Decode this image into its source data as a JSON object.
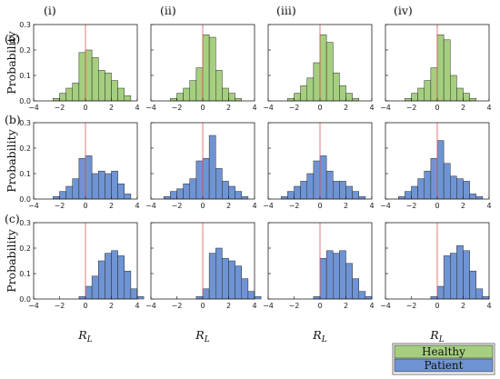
{
  "colors": {
    "healthy": "#a5cf7f",
    "patient": "#6f94d4",
    "edge": "#2b2b2b",
    "zero_line": "#e05a5a"
  },
  "column_labels": [
    "(i)",
    "(ii)",
    "(iii)",
    "(iv)"
  ],
  "row_labels": [
    "(a)",
    "(b)",
    "(c)"
  ],
  "ylabel": "Probability",
  "xlabel": "R",
  "xlabel_sub": "L",
  "x_ticks": [
    "−4",
    "−2",
    "0",
    "2",
    "4"
  ],
  "y_ticks": [
    "0.0",
    "0.1",
    "0.2",
    "0.3"
  ],
  "legend": [
    {
      "label": "Healthy",
      "color": "#a5cf7f"
    },
    {
      "label": "Patient",
      "color": "#6f94d4"
    }
  ],
  "chart_data": {
    "type": "bar",
    "bin_width": 0.5,
    "xlim": [
      -4,
      4
    ],
    "ylim": [
      0,
      0.3
    ],
    "zero_line_x": 0,
    "panels": [
      {
        "row": "(a)",
        "col": "(i)",
        "series": "Healthy",
        "bin_start": -2.5,
        "values": [
          0.01,
          0.03,
          0.05,
          0.07,
          0.19,
          0.2,
          0.17,
          0.12,
          0.11,
          0.08,
          0.05,
          0.02
        ]
      },
      {
        "row": "(a)",
        "col": "(ii)",
        "series": "Healthy",
        "bin_start": -2.5,
        "values": [
          0.01,
          0.03,
          0.05,
          0.08,
          0.13,
          0.26,
          0.25,
          0.12,
          0.05,
          0.03,
          0.01
        ]
      },
      {
        "row": "(a)",
        "col": "(iii)",
        "series": "Healthy",
        "bin_start": -2.5,
        "values": [
          0.01,
          0.03,
          0.06,
          0.09,
          0.15,
          0.26,
          0.23,
          0.11,
          0.06,
          0.03,
          0.01
        ]
      },
      {
        "row": "(a)",
        "col": "(iv)",
        "series": "Healthy",
        "bin_start": -2.5,
        "values": [
          0.01,
          0.03,
          0.05,
          0.08,
          0.13,
          0.26,
          0.24,
          0.1,
          0.05,
          0.03,
          0.01
        ]
      },
      {
        "row": "(b)",
        "col": "(i)",
        "series": "Patient",
        "bin_start": -2.5,
        "values": [
          0.01,
          0.03,
          0.05,
          0.08,
          0.16,
          0.17,
          0.1,
          0.11,
          0.1,
          0.11,
          0.06,
          0.02
        ]
      },
      {
        "row": "(b)",
        "col": "(ii)",
        "series": "Patient",
        "bin_start": -3.0,
        "values": [
          0.01,
          0.03,
          0.04,
          0.06,
          0.08,
          0.15,
          0.16,
          0.25,
          0.12,
          0.07,
          0.05,
          0.03,
          0.01
        ]
      },
      {
        "row": "(b)",
        "col": "(iii)",
        "series": "Patient",
        "bin_start": -3.0,
        "values": [
          0.01,
          0.03,
          0.05,
          0.07,
          0.1,
          0.15,
          0.17,
          0.11,
          0.07,
          0.07,
          0.05,
          0.03,
          0.01
        ]
      },
      {
        "row": "(b)",
        "col": "(iv)",
        "series": "Patient",
        "bin_start": -3.0,
        "values": [
          0.01,
          0.03,
          0.05,
          0.08,
          0.11,
          0.16,
          0.23,
          0.14,
          0.09,
          0.08,
          0.07,
          0.02,
          0.01
        ]
      },
      {
        "row": "(c)",
        "col": "(i)",
        "series": "Patient",
        "bin_start": -0.5,
        "values": [
          0.01,
          0.05,
          0.09,
          0.15,
          0.18,
          0.19,
          0.17,
          0.11,
          0.04,
          0.01
        ]
      },
      {
        "row": "(c)",
        "col": "(ii)",
        "series": "Patient",
        "bin_start": -0.5,
        "values": [
          0.01,
          0.04,
          0.18,
          0.2,
          0.16,
          0.15,
          0.13,
          0.08,
          0.03,
          0.01
        ]
      },
      {
        "row": "(c)",
        "col": "(iii)",
        "series": "Patient",
        "bin_start": -0.5,
        "values": [
          0.01,
          0.16,
          0.19,
          0.18,
          0.19,
          0.14,
          0.08,
          0.03,
          0.01
        ]
      },
      {
        "row": "(c)",
        "col": "(iv)",
        "series": "Patient",
        "bin_start": -0.5,
        "values": [
          0.01,
          0.05,
          0.17,
          0.18,
          0.21,
          0.19,
          0.11,
          0.04,
          0.01
        ]
      }
    ]
  }
}
